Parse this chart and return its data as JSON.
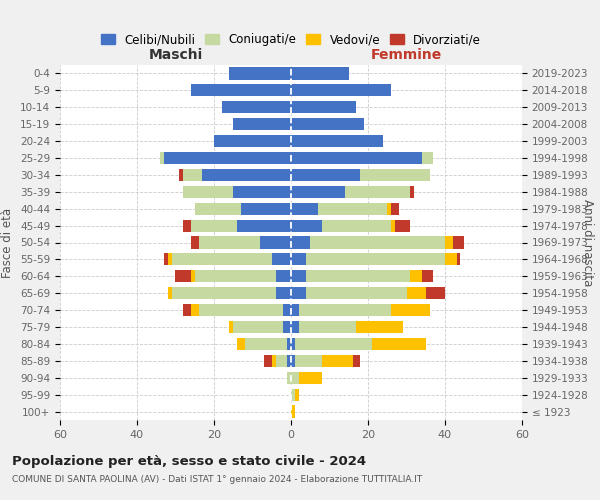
{
  "age_groups": [
    "100+",
    "95-99",
    "90-94",
    "85-89",
    "80-84",
    "75-79",
    "70-74",
    "65-69",
    "60-64",
    "55-59",
    "50-54",
    "45-49",
    "40-44",
    "35-39",
    "30-34",
    "25-29",
    "20-24",
    "15-19",
    "10-14",
    "5-9",
    "0-4"
  ],
  "birth_years": [
    "≤ 1923",
    "1924-1928",
    "1929-1933",
    "1934-1938",
    "1939-1943",
    "1944-1948",
    "1949-1953",
    "1954-1958",
    "1959-1963",
    "1964-1968",
    "1969-1973",
    "1974-1978",
    "1979-1983",
    "1984-1988",
    "1989-1993",
    "1994-1998",
    "1999-2003",
    "2004-2008",
    "2009-2013",
    "2014-2018",
    "2019-2023"
  ],
  "males_celibi": [
    0,
    0,
    0,
    1,
    1,
    2,
    2,
    4,
    4,
    5,
    8,
    14,
    13,
    15,
    23,
    33,
    20,
    15,
    18,
    26,
    16
  ],
  "males_coniugati": [
    0,
    0,
    1,
    3,
    11,
    13,
    22,
    27,
    21,
    26,
    16,
    12,
    12,
    13,
    5,
    1,
    0,
    0,
    0,
    0,
    0
  ],
  "males_vedovi": [
    0,
    0,
    0,
    1,
    2,
    1,
    2,
    1,
    1,
    1,
    0,
    0,
    0,
    0,
    0,
    0,
    0,
    0,
    0,
    0,
    0
  ],
  "males_divorziati": [
    0,
    0,
    0,
    2,
    0,
    0,
    2,
    0,
    4,
    1,
    2,
    2,
    0,
    0,
    1,
    0,
    0,
    0,
    0,
    0,
    0
  ],
  "females_nubili": [
    0,
    0,
    0,
    1,
    1,
    2,
    2,
    4,
    4,
    4,
    5,
    8,
    7,
    14,
    18,
    34,
    24,
    19,
    17,
    26,
    15
  ],
  "females_coniugate": [
    0,
    1,
    2,
    7,
    20,
    15,
    24,
    26,
    27,
    36,
    35,
    18,
    18,
    17,
    18,
    3,
    0,
    0,
    0,
    0,
    0
  ],
  "females_vedove": [
    1,
    1,
    6,
    8,
    14,
    12,
    10,
    5,
    3,
    3,
    2,
    1,
    1,
    0,
    0,
    0,
    0,
    0,
    0,
    0,
    0
  ],
  "females_divorziate": [
    0,
    0,
    0,
    2,
    0,
    0,
    0,
    5,
    3,
    1,
    3,
    4,
    2,
    1,
    0,
    0,
    0,
    0,
    0,
    0,
    0
  ],
  "color_celibi": "#4472c4",
  "color_coniugati": "#c5d9a0",
  "color_vedovi": "#ffc000",
  "color_divorziati": "#c0392b",
  "legend_labels": [
    "Celibi/Nubili",
    "Coniugati/e",
    "Vedovi/e",
    "Divorziati/e"
  ],
  "xlim": 60,
  "title": "Popolazione per età, sesso e stato civile - 2024",
  "subtitle": "COMUNE DI SANTA PAOLINA (AV) - Dati ISTAT 1° gennaio 2024 - Elaborazione TUTTITALIA.IT",
  "label_maschi": "Maschi",
  "label_femmine": "Femmine",
  "ylabel_left": "Fasce di età",
  "ylabel_right": "Anni di nascita",
  "bg_color": "#f0f0f0",
  "plot_bg": "#ffffff"
}
